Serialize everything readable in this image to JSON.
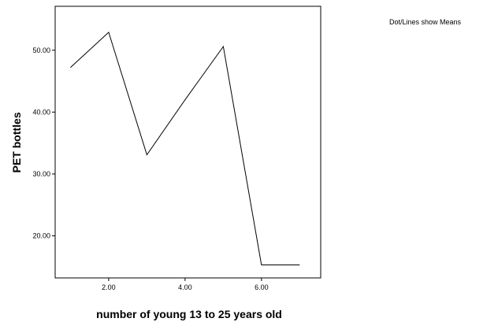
{
  "chart_data": {
    "type": "line",
    "x": [
      1,
      2,
      3,
      4,
      5,
      6,
      7
    ],
    "series": [
      {
        "values": [
          47.2,
          52.9,
          33.1,
          42.0,
          50.6,
          15.3,
          15.3
        ]
      }
    ],
    "xlabel": "number of young 13 to 25 years old",
    "ylabel": "PET bottles",
    "xlim": [
      0.6,
      7.55
    ],
    "ylim": [
      13.2,
      57.1
    ],
    "x_ticks": [
      2,
      4,
      6
    ],
    "x_tick_labels": [
      "2.00",
      "4.00",
      "6.00"
    ],
    "y_ticks": [
      20,
      30,
      40,
      50
    ],
    "y_tick_labels": [
      "20.00",
      "30.00",
      "40.00",
      "50.00"
    ],
    "grid": false,
    "line_color": "#000000",
    "annotation": "Dot/Lines show Means"
  }
}
